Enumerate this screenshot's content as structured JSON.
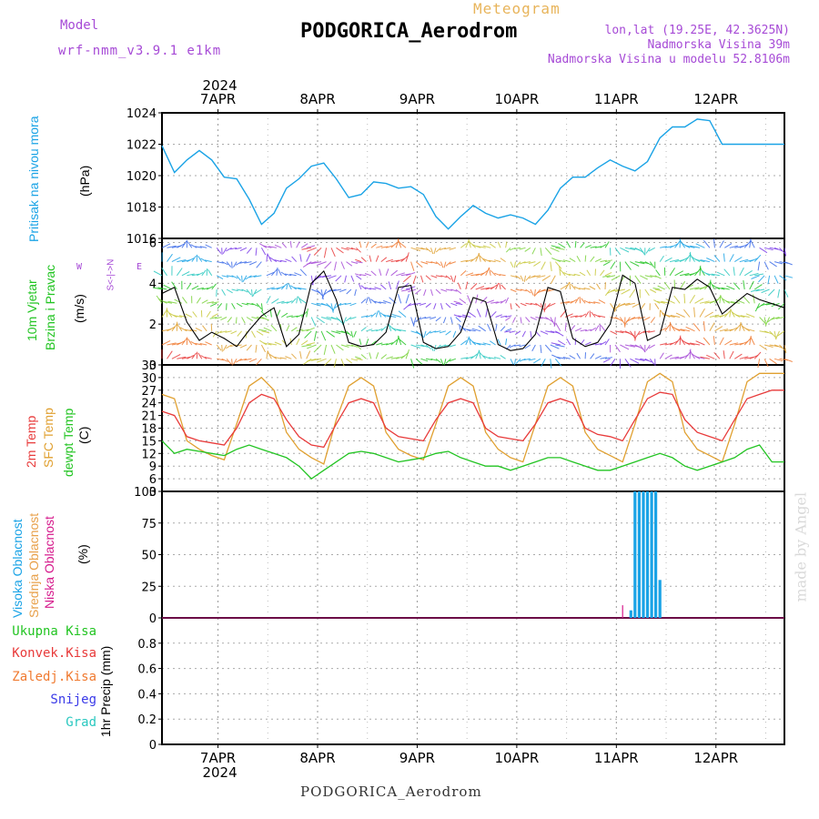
{
  "header": {
    "model_label": "Model",
    "model_name": "wrf-nmm_v3.9.1 e1km",
    "product": "Meteogram",
    "station": "PODGORICA_Aerodrom",
    "lonlat": "lon,lat (19.25E, 42.3625N)",
    "elevation": "Nadmorska Visina 39m",
    "model_elevation": "Nadmorska Visina u modelu 52.8106m"
  },
  "year": "2024",
  "footer_station": "PODGORICA_Aerodrom",
  "credit": "made by Angel",
  "colors": {
    "pressure": "#1aa3e6",
    "temp2m": "#e83a3a",
    "sfc_temp": "#e0a030",
    "dewpoint": "#22c422",
    "cloud_high": "#1aa3e6",
    "cloud_mid": "#e8a04a",
    "cloud_low": "#d61a8c",
    "wind_dir": "#a64ad6"
  },
  "panel_labels": {
    "pressure": {
      "name": "Pritisak na nivou mora",
      "unit": "(hPa)"
    },
    "wind": {
      "name1": "10m Vjetar",
      "name2": "Brzina i Pravac",
      "unit": "(m/s)",
      "compass_ns": "S<-|->N",
      "compass_we_w": "W",
      "compass_we_e": "E"
    },
    "temp": {
      "l1": "2m Temp",
      "l2": "SFC Temp",
      "l3": "dewpt Temp",
      "unit": "(C)"
    },
    "cloud": {
      "l1": "Visoka Oblacnost",
      "l2": "Srednja Oblacnost",
      "l3": "Niska Oblacnost",
      "unit": "(%)"
    },
    "precip": {
      "unit": "1hr Precip (mm)",
      "legend": [
        "Ukupna Kisa",
        "Konvek.Kisa",
        "Zaledj.Kisa",
        "Snijeg",
        "Grad"
      ]
    }
  },
  "chart_data": [
    {
      "type": "line",
      "id": "pressure",
      "title": "Pritisak na nivou mora",
      "ylabel": "(hPa)",
      "x_unit": "hours from 6APR 12UTC",
      "x_categories": [
        "7APR",
        "8APR",
        "9APR",
        "10APR",
        "11APR",
        "12APR"
      ],
      "ylim": [
        1016,
        1024
      ],
      "yticks": [
        1016,
        1018,
        1020,
        1022,
        1024
      ],
      "series": [
        {
          "name": "Pritisak na nivou mora",
          "x": [
            0,
            3,
            6,
            9,
            12,
            15,
            18,
            21,
            24,
            27,
            30,
            33,
            36,
            39,
            42,
            45,
            48,
            51,
            54,
            57,
            60,
            63,
            66,
            69,
            72,
            75,
            78,
            81,
            84,
            87,
            90,
            93,
            96,
            99,
            102,
            105,
            108,
            111,
            114,
            117,
            120,
            123,
            126,
            129,
            132,
            135,
            138,
            141,
            144,
            147,
            150
          ],
          "y": [
            1021.9,
            1020.2,
            1021.0,
            1021.6,
            1021.0,
            1019.9,
            1019.8,
            1018.5,
            1016.9,
            1017.6,
            1019.2,
            1019.8,
            1020.6,
            1020.8,
            1019.8,
            1018.6,
            1018.8,
            1019.6,
            1019.5,
            1019.2,
            1019.3,
            1018.8,
            1017.4,
            1016.6,
            1017.4,
            1018.1,
            1017.6,
            1017.3,
            1017.5,
            1017.3,
            1016.9,
            1017.8,
            1019.2,
            1019.9,
            1019.9,
            1020.5,
            1021.0,
            1020.6,
            1020.3,
            1020.9,
            1022.4,
            1023.1,
            1023.1,
            1023.6,
            1023.5,
            1022.0,
            1022.0,
            1022.0,
            1022.0,
            1022.0,
            1022.0
          ]
        }
      ],
      "grid": true
    },
    {
      "type": "line",
      "id": "wind",
      "title": "10m Vjetar Brzina i Pravac",
      "ylabel": "(m/s)",
      "ylim": [
        0,
        6.2
      ],
      "yticks": [
        0,
        2,
        4,
        6
      ],
      "series": [
        {
          "name": "10m Vjetar",
          "x": [
            0,
            3,
            6,
            9,
            12,
            15,
            18,
            21,
            24,
            27,
            30,
            33,
            36,
            39,
            42,
            45,
            48,
            51,
            54,
            57,
            60,
            63,
            66,
            69,
            72,
            75,
            78,
            81,
            84,
            87,
            90,
            93,
            96,
            99,
            102,
            105,
            108,
            111,
            114,
            117,
            120,
            123,
            126,
            129,
            132,
            135,
            138,
            141,
            144,
            147,
            150
          ],
          "y": [
            3.5,
            3.8,
            2.1,
            1.2,
            1.6,
            1.3,
            0.9,
            1.7,
            2.4,
            2.8,
            0.9,
            1.5,
            4.0,
            4.6,
            3.2,
            1.1,
            0.9,
            1.0,
            1.6,
            3.8,
            3.9,
            1.1,
            0.8,
            0.9,
            1.6,
            3.3,
            3.1,
            1.0,
            0.7,
            0.8,
            1.5,
            3.8,
            3.6,
            1.3,
            0.9,
            1.1,
            2.0,
            4.4,
            4.0,
            1.2,
            1.5,
            3.8,
            3.7,
            4.2,
            3.8,
            2.5,
            3.0,
            3.5,
            3.2,
            3.0,
            2.8
          ]
        }
      ],
      "grid": true
    },
    {
      "type": "line",
      "id": "temp",
      "title": "2m Temp / SFC Temp / dewpt Temp",
      "ylabel": "(C)",
      "ylim": [
        3,
        33
      ],
      "yticks": [
        3,
        6,
        9,
        12,
        15,
        18,
        21,
        24,
        27,
        30,
        33
      ],
      "series": [
        {
          "name": "2m Temp",
          "x": [
            0,
            3,
            6,
            9,
            12,
            15,
            18,
            21,
            24,
            27,
            30,
            33,
            36,
            39,
            42,
            45,
            48,
            51,
            54,
            57,
            60,
            63,
            66,
            69,
            72,
            75,
            78,
            81,
            84,
            87,
            90,
            93,
            96,
            99,
            102,
            105,
            108,
            111,
            114,
            117,
            120,
            123,
            126,
            129,
            132,
            135,
            138,
            141,
            144,
            147,
            150
          ],
          "y": [
            22,
            21,
            16,
            15,
            14.5,
            14,
            18,
            24,
            26,
            25,
            20,
            16,
            14,
            13.5,
            19,
            24,
            25,
            24,
            18,
            16,
            15.5,
            15,
            20,
            24,
            25,
            24,
            18,
            16,
            15.5,
            15,
            19,
            24,
            25,
            24,
            18,
            16.5,
            16,
            15,
            20,
            25,
            26.5,
            26,
            20,
            17,
            16,
            15,
            20,
            25,
            26,
            27,
            27
          ]
        },
        {
          "name": "SFC Temp",
          "x": [
            0,
            3,
            6,
            9,
            12,
            15,
            18,
            21,
            24,
            27,
            30,
            33,
            36,
            39,
            42,
            45,
            48,
            51,
            54,
            57,
            60,
            63,
            66,
            69,
            72,
            75,
            78,
            81,
            84,
            87,
            90,
            93,
            96,
            99,
            102,
            105,
            108,
            111,
            114,
            117,
            120,
            123,
            126,
            129,
            132,
            135,
            138,
            141,
            144,
            147,
            150
          ],
          "y": [
            26,
            25,
            15,
            13,
            11.5,
            10.5,
            19,
            28,
            30,
            27,
            17,
            13,
            11,
            9.5,
            20,
            28,
            30,
            28,
            17,
            13,
            11.5,
            10.5,
            19,
            28,
            30,
            28,
            17,
            13,
            11,
            10,
            19,
            28,
            30,
            28,
            17,
            13,
            11.5,
            10,
            19,
            29,
            31,
            29,
            17,
            13,
            11.5,
            10,
            19,
            29,
            31,
            31,
            31
          ]
        },
        {
          "name": "dewpt Temp",
          "x": [
            0,
            3,
            6,
            9,
            12,
            15,
            18,
            21,
            24,
            27,
            30,
            33,
            36,
            39,
            42,
            45,
            48,
            51,
            54,
            57,
            60,
            63,
            66,
            69,
            72,
            75,
            78,
            81,
            84,
            87,
            90,
            93,
            96,
            99,
            102,
            105,
            108,
            111,
            114,
            117,
            120,
            123,
            126,
            129,
            132,
            135,
            138,
            141,
            144,
            147,
            150
          ],
          "y": [
            15,
            12,
            13,
            12.5,
            12,
            11.5,
            13,
            14,
            13,
            12,
            11,
            9,
            6,
            8,
            10,
            12,
            12.5,
            12,
            11,
            10,
            10.5,
            11,
            12,
            12.5,
            11,
            10,
            9,
            9,
            8,
            9,
            10,
            11,
            11,
            10,
            9,
            8,
            8,
            9,
            10,
            11,
            12,
            11,
            9,
            8,
            9,
            10,
            11,
            13,
            14,
            10,
            10
          ]
        }
      ],
      "grid": true
    },
    {
      "type": "bar",
      "id": "cloud",
      "title": "Visoka / Srednja / Niska Oblacnost",
      "ylabel": "(%)",
      "ylim": [
        0,
        100
      ],
      "yticks": [
        0,
        25,
        50,
        75,
        100
      ],
      "series": [
        {
          "name": "Visoka Oblacnost",
          "x": [
            113,
            114,
            115,
            116,
            117,
            118,
            119,
            120,
            121
          ],
          "y": [
            6,
            100,
            100,
            100,
            100,
            100,
            100,
            30,
            0
          ]
        },
        {
          "name": "Niska Oblacnost",
          "x": [
            111
          ],
          "y": [
            10
          ]
        }
      ],
      "grid": true
    },
    {
      "type": "bar",
      "id": "precip",
      "title": "1hr Precip",
      "ylabel": "1hr Precip (mm)",
      "ylim": [
        0,
        1.0
      ],
      "yticks": [
        0,
        0.2,
        0.4,
        0.6,
        0.8
      ],
      "series": [
        {
          "name": "Ukupna Kisa",
          "x": [],
          "y": []
        }
      ],
      "grid": true
    }
  ]
}
